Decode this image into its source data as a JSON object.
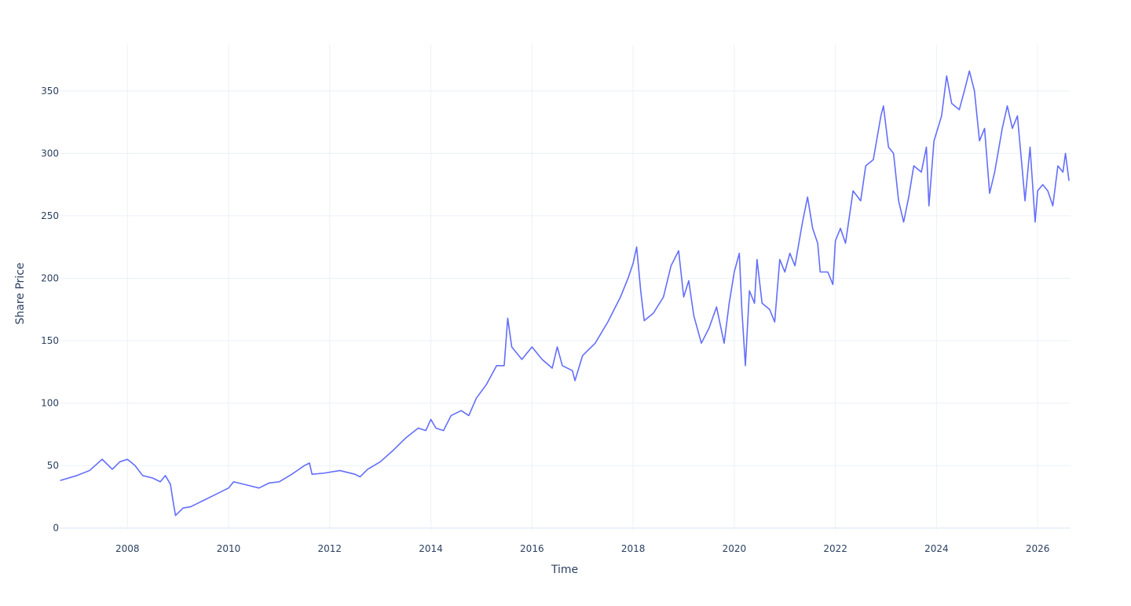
{
  "chart_data": {
    "type": "line",
    "x_label": "Time",
    "y_label": "Share Price",
    "x": [
      2006.67,
      2007.0,
      2007.25,
      2007.5,
      2007.7,
      2007.85,
      2008.0,
      2008.15,
      2008.3,
      2008.5,
      2008.65,
      2008.75,
      2008.85,
      2008.9,
      2008.95,
      2009.1,
      2009.25,
      2009.5,
      2009.75,
      2010.0,
      2010.1,
      2010.4,
      2010.6,
      2010.8,
      2011.0,
      2011.25,
      2011.5,
      2011.6,
      2011.65,
      2011.9,
      2012.2,
      2012.5,
      2012.6,
      2012.75,
      2013.0,
      2013.25,
      2013.5,
      2013.75,
      2013.9,
      2014.0,
      2014.1,
      2014.25,
      2014.4,
      2014.6,
      2014.75,
      2014.9,
      2015.1,
      2015.3,
      2015.45,
      2015.52,
      2015.6,
      2015.8,
      2016.0,
      2016.2,
      2016.4,
      2016.5,
      2016.6,
      2016.8,
      2016.85,
      2017.0,
      2017.25,
      2017.5,
      2017.75,
      2017.9,
      2018.0,
      2018.07,
      2018.15,
      2018.22,
      2018.4,
      2018.6,
      2018.75,
      2018.9,
      2019.0,
      2019.1,
      2019.2,
      2019.35,
      2019.5,
      2019.65,
      2019.8,
      2019.9,
      2020.0,
      2020.1,
      2020.15,
      2020.22,
      2020.3,
      2020.4,
      2020.45,
      2020.55,
      2020.7,
      2020.8,
      2020.9,
      2021.0,
      2021.1,
      2021.2,
      2021.35,
      2021.45,
      2021.55,
      2021.65,
      2021.7,
      2021.85,
      2021.95,
      2022.0,
      2022.1,
      2022.2,
      2022.35,
      2022.5,
      2022.6,
      2022.75,
      2022.9,
      2022.95,
      2023.05,
      2023.15,
      2023.25,
      2023.35,
      2023.45,
      2023.55,
      2023.7,
      2023.8,
      2023.85,
      2023.95,
      2024.1,
      2024.2,
      2024.3,
      2024.45,
      2024.55,
      2024.65,
      2024.75,
      2024.85,
      2024.95,
      2025.05,
      2025.15,
      2025.3,
      2025.4,
      2025.5,
      2025.6,
      2025.7,
      2025.75,
      2025.85,
      2025.95,
      2026.0,
      2026.1,
      2026.2,
      2026.3,
      2026.4,
      2026.5,
      2026.55,
      2026.62
    ],
    "series": [
      {
        "color": "#636efa",
        "values": [
          38,
          42,
          46,
          55,
          47,
          53,
          55,
          50,
          42,
          40,
          37,
          42,
          35,
          22,
          10,
          16,
          17,
          22,
          27,
          32,
          37,
          34,
          32,
          36,
          37,
          43,
          50,
          52,
          43,
          44,
          46,
          43,
          41,
          47,
          53,
          62,
          72,
          80,
          78,
          87,
          80,
          78,
          90,
          94,
          90,
          104,
          115,
          130,
          130,
          168,
          145,
          135,
          145,
          135,
          128,
          145,
          130,
          126,
          118,
          138,
          148,
          165,
          185,
          200,
          212,
          225,
          190,
          166,
          172,
          185,
          210,
          222,
          185,
          198,
          170,
          148,
          160,
          177,
          148,
          180,
          205,
          220,
          175,
          130,
          190,
          180,
          215,
          180,
          175,
          165,
          215,
          205,
          220,
          210,
          245,
          265,
          240,
          228,
          205,
          205,
          195,
          230,
          240,
          228,
          270,
          262,
          290,
          295,
          330,
          338,
          305,
          300,
          262,
          245,
          265,
          290,
          285,
          305,
          258,
          310,
          330,
          362,
          340,
          335,
          350,
          366,
          350,
          310,
          320,
          268,
          285,
          320,
          338,
          320,
          330,
          285,
          262,
          305,
          245,
          270,
          275,
          270,
          258,
          290,
          285,
          300,
          278
        ]
      }
    ],
    "xlim": [
      2006.66,
      2026.65
    ],
    "xticks": [
      2008,
      2010,
      2012,
      2014,
      2016,
      2018,
      2020,
      2022,
      2024,
      2026
    ],
    "ylim": [
      -1.5,
      387
    ],
    "yticks": [
      0,
      50,
      100,
      150,
      200,
      250,
      300,
      350
    ],
    "grid": true,
    "grid_color": "#ebf0f8"
  }
}
